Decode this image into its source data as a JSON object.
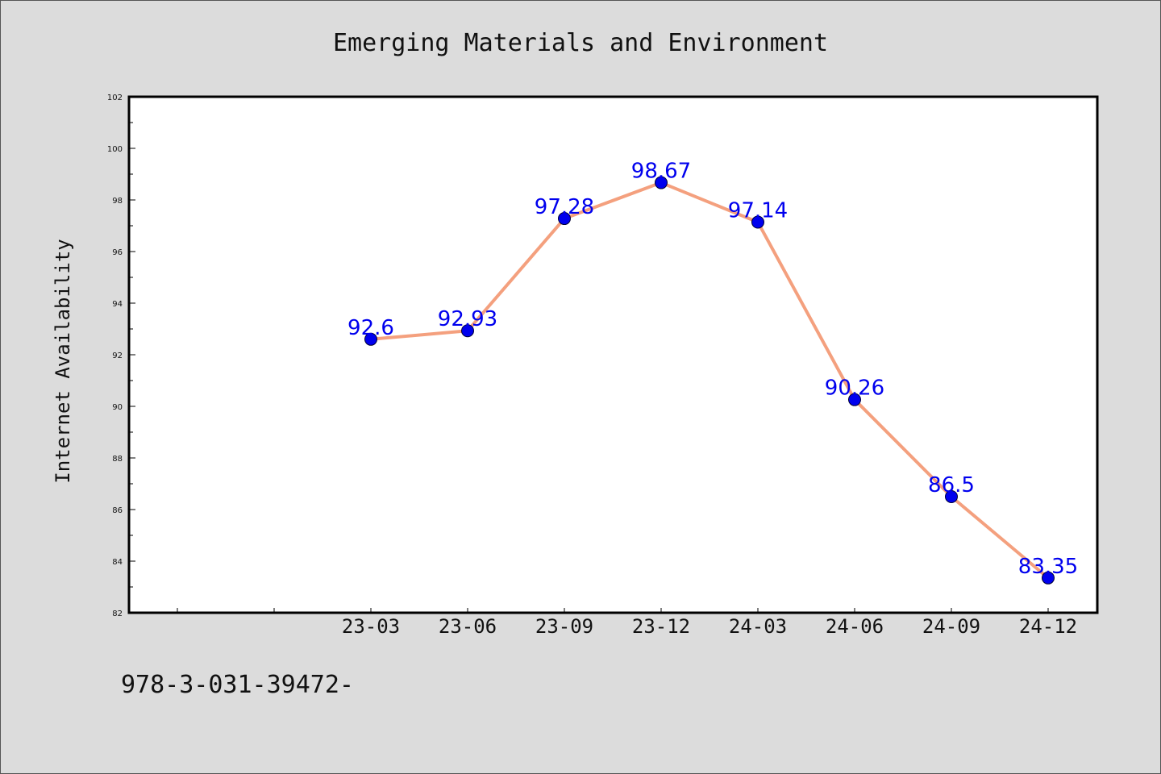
{
  "footer": {
    "code": "978-3-031-39472-"
  },
  "chart_data": {
    "type": "line",
    "title": "Emerging Materials and Environment",
    "xlabel": "",
    "ylabel": "Internet Availability",
    "ylim": [
      82,
      102
    ],
    "yticks": [
      82,
      84,
      86,
      88,
      90,
      92,
      94,
      96,
      98,
      100,
      102
    ],
    "categories": [
      "23-03",
      "23-06",
      "23-09",
      "23-12",
      "24-03",
      "24-06",
      "24-09",
      "24-12"
    ],
    "series": [
      {
        "values": [
          92.6,
          92.93,
          97.28,
          98.67,
          97.14,
          90.26,
          86.5,
          83.35
        ]
      }
    ],
    "data_labels": [
      "92.6",
      "92.93",
      "97.28",
      "98.67",
      "97.14",
      "90.26",
      "86.5",
      "83.35"
    ],
    "grid": false,
    "colors": {
      "line": "#f4a07e",
      "marker": "#0000ee",
      "label": "#0000ee"
    }
  }
}
